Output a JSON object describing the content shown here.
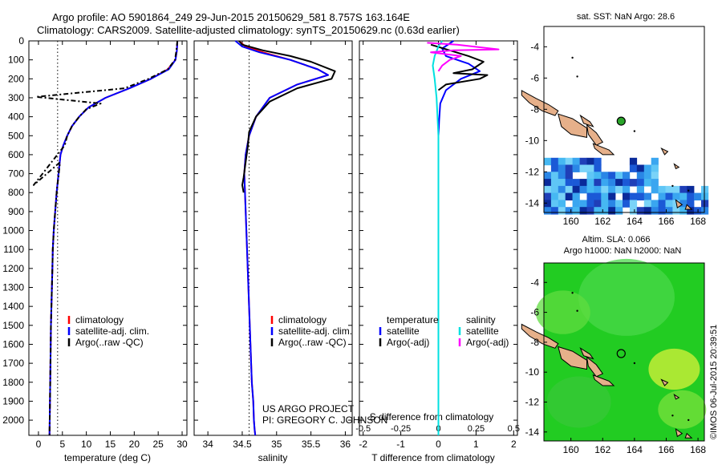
{
  "header": {
    "title_line1": "Argo profile: AO 5901864_249 29-Jun-2015 20150629_581 8.757S 163.164E",
    "title_line2": "Climatology: CARS2009. Satellite-adjusted climatology: synTS_20150629.nc (0.63d earlier)"
  },
  "chart_data": [
    {
      "type": "line",
      "panel": "temperature",
      "xlabel": "temperature (deg C)",
      "ylabel": "",
      "xlim": [
        -2,
        31
      ],
      "ylim": [
        2080,
        0
      ],
      "y_inverted": true,
      "xticks": [
        0,
        5,
        10,
        15,
        20,
        25,
        30
      ],
      "yticks": [
        0,
        100,
        200,
        300,
        400,
        500,
        600,
        700,
        800,
        900,
        1000,
        1100,
        1200,
        1300,
        1400,
        1500,
        1600,
        1700,
        1800,
        1900,
        2000
      ],
      "vline": {
        "x": 4,
        "style": "dotted"
      },
      "legend": {
        "placement": "bottom-right",
        "entries": [
          "climatology",
          "satellite-adj. clim.",
          "Argo(..raw -QC)"
        ]
      },
      "series": [
        {
          "name": "climatology",
          "color": "#ff0000",
          "x": [
            29,
            28.9,
            28.6,
            27,
            23.5,
            19,
            14,
            10.5,
            8.5,
            7,
            6,
            5.2,
            4.6,
            4.2,
            3.8,
            3.5,
            3.2,
            3,
            2.9,
            2.8,
            2.7,
            2.6,
            2.5,
            2.4,
            2.3
          ],
          "y": [
            0,
            50,
            100,
            150,
            200,
            250,
            300,
            350,
            400,
            450,
            500,
            550,
            600,
            700,
            800,
            900,
            1000,
            1100,
            1200,
            1300,
            1400,
            1500,
            1700,
            1900,
            2080
          ]
        },
        {
          "name": "satellite-adj. clim.",
          "color": "#0000ff",
          "x": [
            29,
            28.9,
            28.6,
            27.2,
            23.5,
            19,
            14,
            10.5,
            8.5,
            7,
            6,
            5.2,
            4.6,
            4.2,
            3.8,
            3.5,
            3.2,
            3,
            2.9,
            2.8,
            2.7,
            2.6,
            2.5,
            2.4,
            2.3
          ],
          "y": [
            0,
            50,
            100,
            150,
            200,
            250,
            300,
            350,
            400,
            450,
            500,
            550,
            600,
            700,
            800,
            900,
            1000,
            1100,
            1200,
            1300,
            1400,
            1500,
            1700,
            1900,
            2080
          ]
        },
        {
          "name": "Argo(..raw -QC)",
          "color": "#000000",
          "x": [
            29,
            28.8,
            28.5,
            27,
            23,
            18,
            -0.5,
            13,
            10,
            8.5,
            7,
            6,
            5.5,
            -1,
            4.5,
            3.8,
            3.5,
            3.2,
            3,
            2.9,
            2.8,
            2.7,
            2.6,
            2.5,
            2.4,
            2.3
          ],
          "y": [
            0,
            50,
            100,
            150,
            200,
            250,
            295,
            330,
            360,
            400,
            450,
            500,
            550,
            760,
            640,
            800,
            900,
            1000,
            1100,
            1200,
            1300,
            1400,
            1500,
            1700,
            1900,
            2080
          ]
        }
      ]
    },
    {
      "type": "line",
      "panel": "salinity",
      "xlabel": "salinity",
      "ylabel": "",
      "xlim": [
        33.8,
        36.1
      ],
      "ylim": [
        2080,
        0
      ],
      "y_inverted": true,
      "xticks": [
        34,
        34.5,
        35,
        35.5,
        36
      ],
      "vline": {
        "x": 34.6,
        "style": "dotted"
      },
      "legend": {
        "placement": "bottom-right",
        "entries": [
          "climatology",
          "satellite-adj. clim.",
          "Argo(..raw -QC)"
        ]
      },
      "series": [
        {
          "name": "climatology",
          "color": "#ff0000",
          "x": [
            34.45,
            34.55,
            34.8,
            35.2,
            35.6,
            35.75,
            35.3,
            34.9,
            34.7,
            34.6,
            34.55,
            34.53,
            34.54,
            34.56,
            34.58,
            34.6,
            34.62,
            34.64,
            34.66,
            34.67,
            34.68,
            34.69
          ],
          "y": [
            0,
            30,
            60,
            100,
            150,
            180,
            230,
            300,
            400,
            500,
            600,
            700,
            800,
            1000,
            1200,
            1400,
            1600,
            1800,
            1900,
            2000,
            2050,
            2080
          ]
        },
        {
          "name": "satellite-adj. clim.",
          "color": "#0000ff",
          "x": [
            34.4,
            34.5,
            34.75,
            35.2,
            35.6,
            35.75,
            35.3,
            34.9,
            34.7,
            34.6,
            34.55,
            34.53,
            34.54,
            34.56,
            34.58,
            34.6,
            34.62,
            34.64,
            34.66,
            34.67,
            34.68,
            34.69
          ],
          "y": [
            0,
            30,
            60,
            100,
            150,
            180,
            230,
            300,
            400,
            500,
            600,
            700,
            800,
            1000,
            1200,
            1400,
            1600,
            1800,
            1900,
            2000,
            2050,
            2080
          ]
        },
        {
          "name": "Argo(..raw -QC)",
          "color": "#000000",
          "x": [
            34.45,
            34.5,
            34.8,
            35.2,
            35.5,
            35.85,
            35.8,
            35.3,
            34.9,
            34.7,
            34.6,
            34.58,
            34.55,
            34.52,
            34.5,
            34.52
          ],
          "y": [
            0,
            20,
            50,
            80,
            110,
            160,
            200,
            250,
            320,
            400,
            480,
            560,
            640,
            720,
            760,
            800
          ]
        }
      ]
    },
    {
      "type": "line",
      "panel": "difference",
      "xlabel": "T difference from climatology",
      "xlabel2": "S difference from climatology",
      "ylabel": "",
      "xlim": [
        -2.1,
        2.1
      ],
      "ylim": [
        2080,
        0
      ],
      "y_inverted": true,
      "xticks": [
        -2,
        -1,
        0,
        1,
        2
      ],
      "xticks2": [
        -0.5,
        -0.25,
        0,
        0.25,
        0.5
      ],
      "legend": {
        "placement": "bottom-right",
        "groups": [
          "temperature",
          "salinity"
        ],
        "entries": [
          "satellite",
          "Argo(-adj)",
          "satellite",
          "Argo(-adj)"
        ]
      },
      "series": [
        {
          "name": "satellite",
          "group": "temperature",
          "color": "#0000ff",
          "x": [
            0.4,
            0.1,
            0.2,
            0.8,
            1.1,
            0.6,
            0.2,
            0.05,
            0.02,
            0,
            0,
            0,
            0
          ],
          "y": [
            0,
            40,
            80,
            120,
            160,
            200,
            260,
            330,
            420,
            500,
            800,
            1500,
            2080
          ]
        },
        {
          "name": "Argo(-adj)",
          "group": "temperature",
          "color": "#000000",
          "x": [
            -0.2,
            0.3,
            0.8,
            1.2,
            0.9,
            0.4,
            1.3,
            1.1,
            0.2,
            0
          ],
          "y": [
            20,
            50,
            80,
            110,
            150,
            170,
            180,
            200,
            230,
            260
          ]
        },
        {
          "name": "satellite",
          "group": "salinity",
          "color": "#00e0e0",
          "x": [
            0.1,
            0,
            -0.1,
            -0.15,
            -0.1,
            -0.05,
            0,
            0,
            0,
            0
          ],
          "y": [
            0,
            30,
            80,
            130,
            200,
            300,
            500,
            1000,
            1600,
            2080
          ]
        },
        {
          "name": "Argo(-adj)",
          "group": "salinity",
          "color": "#ff00ff",
          "x": [
            -0.3,
            0.5,
            1.6,
            0.4,
            -0.2,
            0.6,
            0.3,
            0.1,
            0
          ],
          "y": [
            10,
            20,
            45,
            50,
            60,
            80,
            100,
            130,
            160
          ]
        }
      ]
    },
    {
      "type": "heatmap",
      "panel": "sst-map",
      "title": "sat. SST: NaN Argo: 28.6",
      "xlim": [
        158.3,
        168.4
      ],
      "ylim": [
        -14.6,
        -2.7
      ],
      "xticks": [
        160,
        162,
        164,
        166,
        168
      ],
      "yticks": [
        -4,
        -6,
        -8,
        -10,
        -12,
        -14
      ],
      "marker": {
        "lon": 163.164,
        "lat": -8.757,
        "style": "filled-green-circle"
      }
    },
    {
      "type": "heatmap",
      "panel": "sla-map",
      "title": "Altim. SLA: 0.066",
      "subtitle": "Argo h1000: NaN h2000: NaN",
      "xlim": [
        158.3,
        168.4
      ],
      "ylim": [
        -14.6,
        -2.7
      ],
      "xticks": [
        160,
        162,
        164,
        166,
        168
      ],
      "yticks": [
        -4,
        -6,
        -8,
        -10,
        -12,
        -14
      ],
      "marker": {
        "lon": 163.164,
        "lat": -8.757,
        "style": "open-black-circle"
      }
    }
  ],
  "footer": {
    "project_line1": "US ARGO PROJECT",
    "project_line2": "PI: GREGORY C. JOHNSON",
    "stamp": "©IMOS 06-Jul-2015 20:39:51"
  }
}
